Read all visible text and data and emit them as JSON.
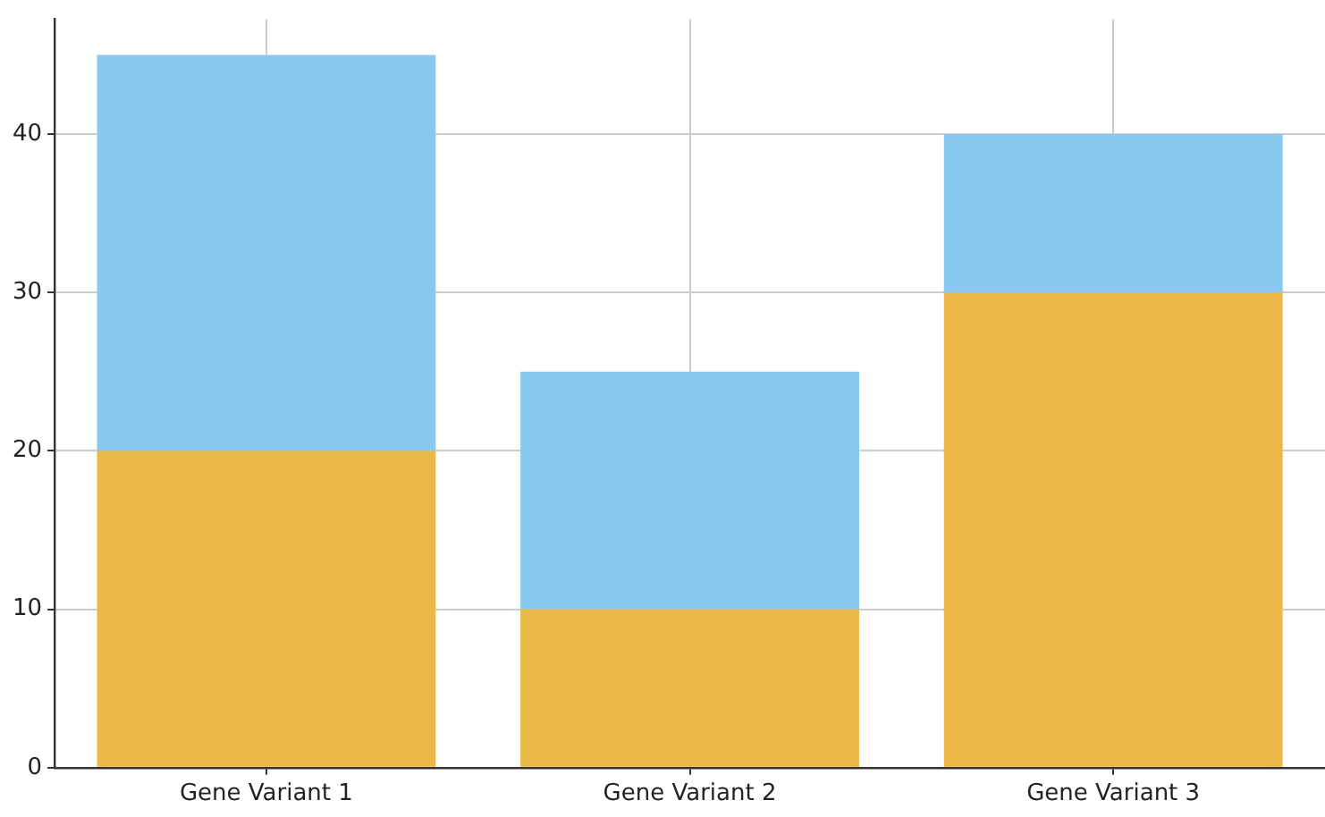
{
  "chart_data": {
    "type": "bar",
    "stacked": true,
    "categories": [
      "Gene Variant 1",
      "Gene Variant 2",
      "Gene Variant 3"
    ],
    "series": [
      {
        "color": "#ebb84a",
        "values": [
          20,
          10,
          30
        ]
      },
      {
        "color": "#89c8ef",
        "values": [
          25,
          15,
          10
        ]
      }
    ],
    "ylim": [
      0,
      47.25
    ],
    "yticks": [
      0,
      10,
      20,
      30,
      40
    ],
    "grid": true
  }
}
